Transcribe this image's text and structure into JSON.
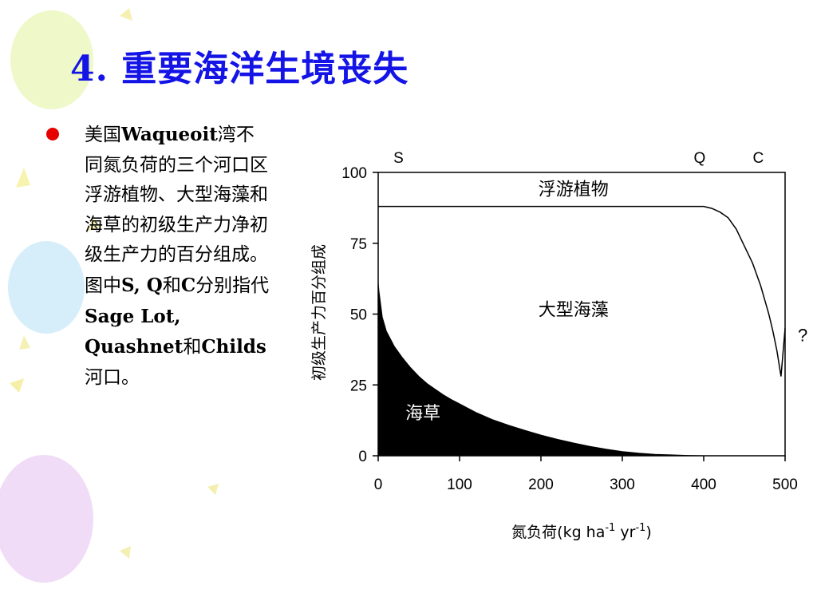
{
  "slide": {
    "title": "4.   重要海洋生境丧失",
    "bullet": {
      "parts": [
        {
          "t": "美国",
          "b": false
        },
        {
          "t": "Waqueoit",
          "b": true
        },
        {
          "t": "湾不同氮负荷的三个河口区浮游植物、大型海藻和海草的初级生产力净初级生产力的百分组成。图中",
          "b": false
        },
        {
          "t": "S, Q",
          "b": true
        },
        {
          "t": "和",
          "b": false
        },
        {
          "t": "C",
          "b": true
        },
        {
          "t": "分别指代",
          "b": false
        },
        {
          "t": "Sage Lot, Quashnet",
          "b": true
        },
        {
          "t": "和",
          "b": false
        },
        {
          "t": "Childs",
          "b": true
        },
        {
          "t": "河口。",
          "b": false
        }
      ]
    },
    "colors": {
      "title": "#1414e6",
      "bullet": "#e60000"
    }
  },
  "chart_data": {
    "type": "area",
    "x_label": {
      "main": "氮负荷(kg ha",
      "sup1": "-1",
      "mid": " yr",
      "sup2": "-1",
      "end": ")"
    },
    "ylabel": "初级生产力百分组成",
    "xlim": [
      0,
      500
    ],
    "ylim": [
      0,
      100
    ],
    "x_ticks": [
      0,
      100,
      200,
      300,
      400,
      500
    ],
    "y_ticks": [
      0,
      25,
      50,
      75,
      100
    ],
    "estuary_markers": [
      {
        "label": "S",
        "x": 25
      },
      {
        "label": "Q",
        "x": 395
      },
      {
        "label": "C",
        "x": 467
      }
    ],
    "unknown_marker": "?",
    "series": [
      {
        "name": "海草",
        "fill": "#000000",
        "x": [
          0,
          1,
          5,
          10,
          20,
          30,
          40,
          50,
          60,
          70,
          80,
          90,
          100,
          120,
          140,
          160,
          180,
          200,
          220,
          240,
          260,
          280,
          300,
          320,
          340,
          360,
          380,
          400
        ],
        "y": [
          61,
          58,
          49,
          44,
          38.5,
          34.5,
          31,
          28,
          25.5,
          23.5,
          21.5,
          19.8,
          18.3,
          15.3,
          12.8,
          10.8,
          9,
          7.3,
          5.8,
          4.5,
          3.3,
          2.3,
          1.5,
          0.9,
          0.5,
          0.3,
          0.1,
          0
        ]
      },
      {
        "name": "大型海藻",
        "fill": "#ffffff",
        "boundary_x": [
          0,
          400,
          410,
          420,
          430,
          440,
          450,
          460,
          470,
          480,
          485,
          490,
          495,
          500
        ],
        "boundary_y": [
          88,
          88,
          87.3,
          86,
          84,
          80,
          74,
          68,
          60,
          50,
          44,
          37,
          28,
          45
        ]
      },
      {
        "name": "浮游植物",
        "fill": "#ffffff"
      }
    ]
  }
}
